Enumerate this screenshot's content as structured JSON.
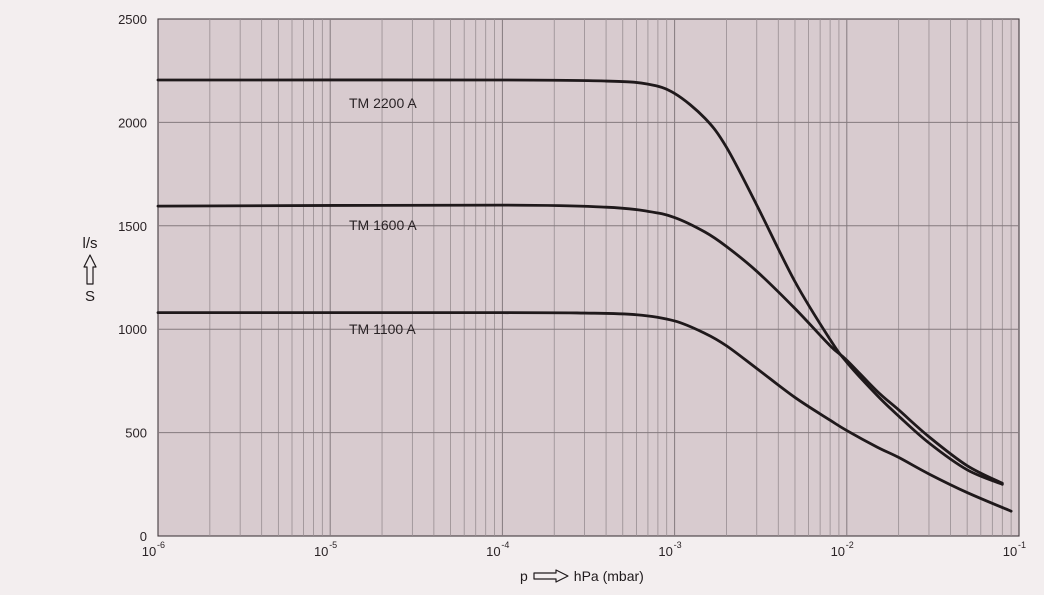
{
  "chart_data": {
    "type": "line",
    "x_scale": "log",
    "xlim": [
      1e-06,
      0.1
    ],
    "ylim": [
      0,
      2500
    ],
    "grid": true,
    "x_ticks": [
      {
        "value": 1e-06,
        "base": "10",
        "exp": "-6"
      },
      {
        "value": 1e-05,
        "base": "10",
        "exp": "-5"
      },
      {
        "value": 0.0001,
        "base": "10",
        "exp": "-4"
      },
      {
        "value": 0.001,
        "base": "10",
        "exp": "-3"
      },
      {
        "value": 0.01,
        "base": "10",
        "exp": "-2"
      },
      {
        "value": 0.1,
        "base": "10",
        "exp": "-1"
      }
    ],
    "y_ticks": [
      "0",
      "500",
      "1000",
      "1500",
      "2000",
      "2500"
    ],
    "ylabel_top": "l/s",
    "ylabel_bottom": "S",
    "xlabel_left": "p",
    "xlabel_right": "hPa (mbar)",
    "series": [
      {
        "name": "TM 2200 A",
        "x": [
          1e-06,
          0.0001,
          0.0004,
          0.0007,
          0.001,
          0.0015,
          0.002,
          0.003,
          0.005,
          0.008,
          0.01,
          0.015,
          0.02,
          0.03,
          0.05,
          0.08
        ],
        "y": [
          2205,
          2205,
          2200,
          2185,
          2140,
          2020,
          1880,
          1600,
          1230,
          950,
          840,
          680,
          580,
          450,
          320,
          250
        ]
      },
      {
        "name": "TM 1600 A",
        "x": [
          1e-06,
          0.0001,
          0.0004,
          0.0007,
          0.001,
          0.0015,
          0.002,
          0.003,
          0.005,
          0.008,
          0.01,
          0.015,
          0.02,
          0.03,
          0.05,
          0.08
        ],
        "y": [
          1595,
          1600,
          1590,
          1570,
          1540,
          1470,
          1400,
          1280,
          1100,
          920,
          850,
          700,
          610,
          480,
          340,
          255
        ]
      },
      {
        "name": "TM 1100 A",
        "x": [
          1e-06,
          0.0001,
          0.0003,
          0.0006,
          0.001,
          0.0015,
          0.002,
          0.003,
          0.005,
          0.008,
          0.01,
          0.015,
          0.02,
          0.03,
          0.05,
          0.09
        ],
        "y": [
          1080,
          1080,
          1078,
          1070,
          1040,
          980,
          920,
          810,
          670,
          560,
          510,
          430,
          380,
          300,
          210,
          120
        ]
      }
    ]
  }
}
